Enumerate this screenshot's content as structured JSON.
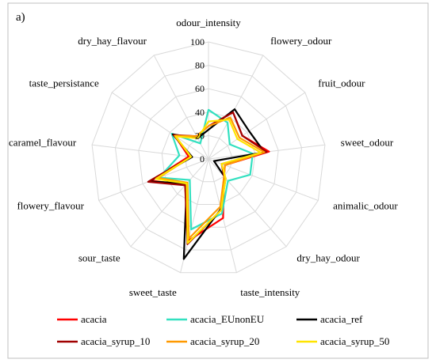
{
  "panel_label": "a)",
  "chart_data": {
    "type": "radar",
    "categories": [
      "odour_intensity",
      "flowery_odour",
      "fruit_odour",
      "sweet_odour",
      "animalic_odour",
      "dry_hay_odour",
      "taste_intensity",
      "sweet_taste",
      "sour_taste",
      "flowery_flavour",
      "caramel_flavour",
      "taste_persistance",
      "dry_hay_flavour"
    ],
    "rlim": [
      0,
      100
    ],
    "ticks": [
      0,
      20,
      40,
      60,
      80,
      100
    ],
    "grid": true,
    "legend_position": "bottom",
    "series": [
      {
        "name": "acacia",
        "color": "#ff0000",
        "values": [
          28,
          45,
          35,
          52,
          15,
          20,
          52,
          72,
          30,
          52,
          17,
          35,
          22
        ]
      },
      {
        "name": "acacia_EUnonEU",
        "color": "#33e0c0",
        "values": [
          42,
          35,
          22,
          38,
          38,
          25,
          48,
          62,
          24,
          45,
          25,
          38,
          15
        ]
      },
      {
        "name": "acacia_ref",
        "color": "#000000",
        "values": [
          25,
          48,
          42,
          48,
          5,
          22,
          44,
          88,
          28,
          54,
          14,
          37,
          20
        ]
      },
      {
        "name": "acacia_syrup_10",
        "color": "#a00000",
        "values": [
          28,
          45,
          35,
          50,
          12,
          20,
          45,
          75,
          30,
          55,
          15,
          36,
          22
        ]
      },
      {
        "name": "acacia_syrup_20",
        "color": "#ff9900",
        "values": [
          28,
          40,
          32,
          48,
          15,
          20,
          42,
          70,
          27,
          46,
          15,
          35,
          22
        ]
      },
      {
        "name": "acacia_syrup_50",
        "color": "#ffe400",
        "values": [
          32,
          38,
          30,
          45,
          12,
          22,
          45,
          74,
          28,
          48,
          15,
          34,
          20
        ]
      }
    ]
  }
}
